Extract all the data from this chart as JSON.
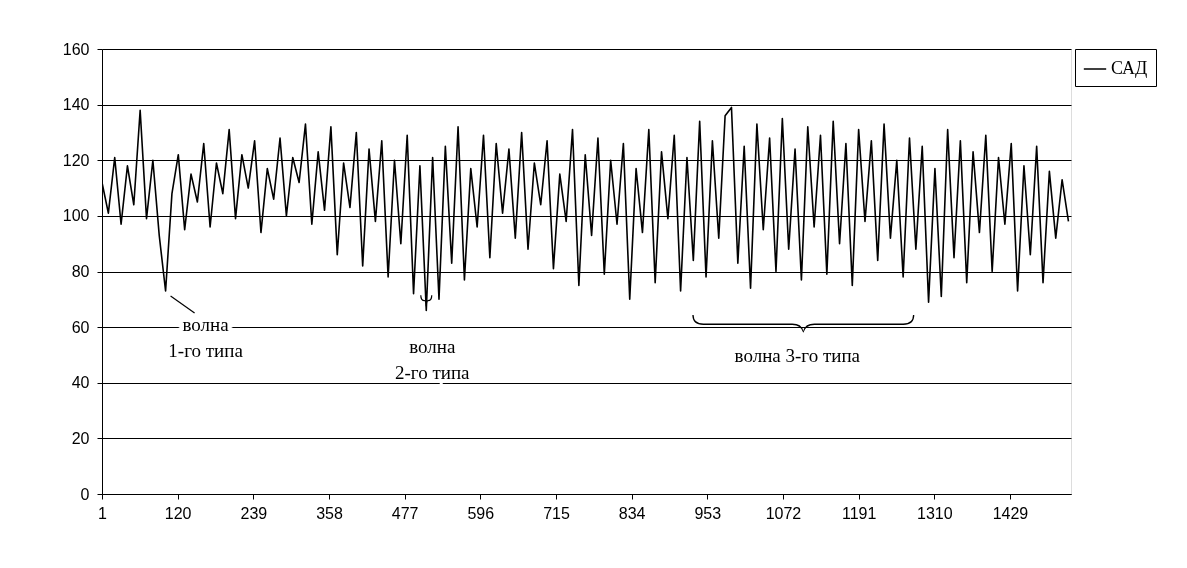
{
  "chart_data": {
    "type": "line",
    "x": [
      1,
      11,
      21,
      31,
      41,
      51,
      61,
      71,
      81,
      91,
      101,
      111,
      121,
      131,
      141,
      151,
      161,
      171,
      181,
      191,
      201,
      211,
      221,
      231,
      241,
      251,
      261,
      271,
      281,
      291,
      301,
      311,
      321,
      331,
      341,
      351,
      361,
      371,
      381,
      391,
      401,
      411,
      421,
      431,
      441,
      451,
      461,
      471,
      481,
      491,
      501,
      511,
      521,
      531,
      541,
      551,
      561,
      571,
      581,
      591,
      601,
      611,
      621,
      631,
      641,
      651,
      661,
      671,
      681,
      691,
      701,
      711,
      721,
      731,
      741,
      751,
      761,
      771,
      781,
      791,
      801,
      811,
      821,
      831,
      841,
      851,
      861,
      871,
      881,
      891,
      901,
      911,
      921,
      931,
      941,
      951,
      961,
      971,
      981,
      991,
      1001,
      1011,
      1021,
      1031,
      1041,
      1051,
      1061,
      1071,
      1081,
      1091,
      1101,
      1111,
      1121,
      1131,
      1141,
      1151,
      1161,
      1171,
      1181,
      1191,
      1201,
      1211,
      1221,
      1231,
      1241,
      1251,
      1261,
      1271,
      1281,
      1291,
      1301,
      1311,
      1321,
      1331,
      1341,
      1351,
      1361,
      1371,
      1381,
      1391,
      1401,
      1411,
      1421,
      1431,
      1441,
      1451,
      1461,
      1471,
      1481,
      1491,
      1501,
      1511,
      1521
    ],
    "series": [
      {
        "name": "САД",
        "color": "#000000",
        "values": [
          112,
          101,
          121,
          97,
          118,
          104,
          138,
          99,
          120,
          93,
          73,
          108,
          122,
          95,
          115,
          105,
          126,
          96,
          119,
          108,
          131,
          99,
          122,
          110,
          127,
          94,
          117,
          106,
          128,
          100,
          121,
          112,
          133,
          97,
          123,
          102,
          132,
          86,
          119,
          103,
          130,
          82,
          124,
          98,
          127,
          78,
          120,
          90,
          129,
          72,
          118,
          66,
          121,
          70,
          125,
          83,
          132,
          77,
          117,
          96,
          129,
          85,
          126,
          101,
          124,
          92,
          130,
          88,
          119,
          104,
          127,
          81,
          115,
          98,
          131,
          75,
          122,
          93,
          128,
          79,
          120,
          97,
          126,
          70,
          117,
          94,
          131,
          76,
          123,
          99,
          129,
          73,
          121,
          84,
          134,
          78,
          127,
          92,
          136,
          139,
          83,
          125,
          74,
          133,
          95,
          128,
          80,
          135,
          88,
          124,
          77,
          132,
          96,
          129,
          79,
          134,
          90,
          126,
          75,
          131,
          98,
          127,
          84,
          133,
          92,
          120,
          78,
          128,
          88,
          125,
          69,
          117,
          71,
          131,
          85,
          127,
          76,
          123,
          94,
          129,
          80,
          121,
          97,
          126,
          73,
          118,
          86,
          125,
          76,
          116,
          92,
          113,
          98
        ]
      }
    ],
    "xlim": [
      1,
      1525
    ],
    "xticks": [
      1,
      120,
      239,
      358,
      477,
      596,
      715,
      834,
      953,
      1072,
      1191,
      1310,
      1429
    ],
    "ylim": [
      0,
      160
    ],
    "yticks": [
      0,
      20,
      40,
      60,
      80,
      100,
      120,
      140,
      160
    ],
    "grid": "y",
    "legend": "right",
    "marker": "none",
    "line_style": "solid",
    "annotations": [
      {
        "text": "волна 1-го типа",
        "x": 101,
        "y": 73
      },
      {
        "text": "волна 2-го типа",
        "x": 511,
        "y": 66
      },
      "волна 3-го типа"
    ]
  }
}
